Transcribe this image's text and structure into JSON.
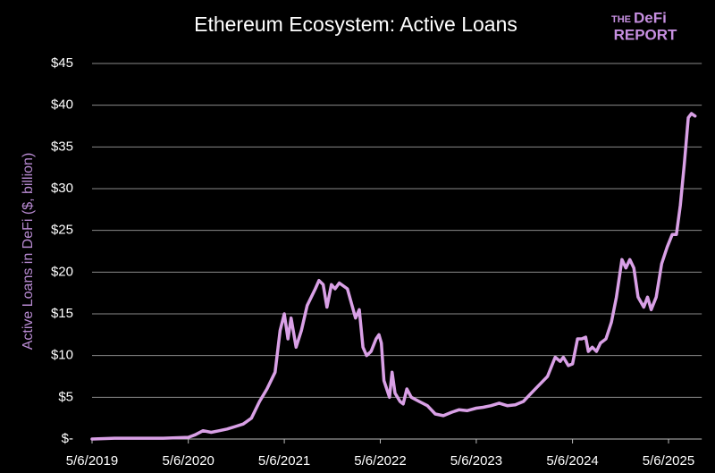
{
  "chart_data": {
    "type": "line",
    "title": "Ethereum Ecosystem: Active Loans",
    "logo": [
      "THE",
      "DeFi",
      "REPORT"
    ],
    "y_label": "Active Loans in DeFi ($, billion)",
    "color": "#d9a0e6",
    "grid": true,
    "xlim": [
      "2019-05-06",
      "2025-08-20"
    ],
    "xticks": [
      {
        "value": "2019-05-06",
        "label": "5/6/2019"
      },
      {
        "value": "2020-05-06",
        "label": "5/6/2020"
      },
      {
        "value": "2021-05-06",
        "label": "5/6/2021"
      },
      {
        "value": "2022-05-06",
        "label": "5/6/2022"
      },
      {
        "value": "2023-05-06",
        "label": "5/6/2023"
      },
      {
        "value": "2024-05-06",
        "label": "5/6/2024"
      },
      {
        "value": "2025-05-06",
        "label": "5/6/2025"
      }
    ],
    "ylim": [
      0,
      45
    ],
    "yticks": [
      {
        "value": 0,
        "label": "$-"
      },
      {
        "value": 5,
        "label": "$5"
      },
      {
        "value": 10,
        "label": "$10"
      },
      {
        "value": 15,
        "label": "$15"
      },
      {
        "value": 20,
        "label": "$20"
      },
      {
        "value": 25,
        "label": "$25"
      },
      {
        "value": 30,
        "label": "$30"
      },
      {
        "value": 35,
        "label": "$35"
      },
      {
        "value": 40,
        "label": "$40"
      },
      {
        "value": 45,
        "label": "$45"
      }
    ],
    "x": [
      "2019-05-06",
      "2019-08-01",
      "2019-11-01",
      "2020-02-01",
      "2020-05-06",
      "2020-06-01",
      "2020-07-01",
      "2020-08-01",
      "2020-09-01",
      "2020-10-01",
      "2020-11-01",
      "2020-12-01",
      "2021-01-01",
      "2021-02-01",
      "2021-03-01",
      "2021-04-01",
      "2021-04-20",
      "2021-05-06",
      "2021-05-20",
      "2021-06-01",
      "2021-06-20",
      "2021-07-10",
      "2021-08-01",
      "2021-09-01",
      "2021-09-15",
      "2021-10-01",
      "2021-10-15",
      "2021-11-01",
      "2021-11-15",
      "2021-12-01",
      "2022-01-01",
      "2022-02-01",
      "2022-02-15",
      "2022-03-01",
      "2022-03-15",
      "2022-04-01",
      "2022-04-20",
      "2022-05-01",
      "2022-05-10",
      "2022-05-20",
      "2022-06-10",
      "2022-06-20",
      "2022-07-01",
      "2022-07-20",
      "2022-08-01",
      "2022-08-15",
      "2022-09-01",
      "2022-10-01",
      "2022-11-01",
      "2022-12-01",
      "2023-01-01",
      "2023-02-01",
      "2023-03-01",
      "2023-04-01",
      "2023-05-06",
      "2023-06-01",
      "2023-07-01",
      "2023-08-01",
      "2023-09-01",
      "2023-10-01",
      "2023-11-01",
      "2023-12-01",
      "2024-01-01",
      "2024-02-01",
      "2024-03-01",
      "2024-03-20",
      "2024-04-01",
      "2024-04-20",
      "2024-05-06",
      "2024-05-25",
      "2024-06-10",
      "2024-06-25",
      "2024-07-05",
      "2024-07-20",
      "2024-08-05",
      "2024-08-20",
      "2024-09-10",
      "2024-10-01",
      "2024-10-20",
      "2024-11-10",
      "2024-11-25",
      "2024-12-10",
      "2024-12-25",
      "2025-01-10",
      "2025-02-01",
      "2025-02-15",
      "2025-03-01",
      "2025-03-20",
      "2025-04-10",
      "2025-05-01",
      "2025-05-20",
      "2025-06-05",
      "2025-06-20",
      "2025-07-05",
      "2025-07-20",
      "2025-08-01",
      "2025-08-15"
    ],
    "values": [
      0,
      0.1,
      0.1,
      0.1,
      0.2,
      0.5,
      1.0,
      0.8,
      1.0,
      1.2,
      1.5,
      1.8,
      2.5,
      4.5,
      6.0,
      8,
      13,
      15,
      12,
      14.5,
      11,
      13,
      16,
      18,
      19,
      18.5,
      15.8,
      18.5,
      18,
      18.7,
      18,
      14.5,
      15.5,
      11,
      10,
      10.5,
      12,
      12.5,
      11.5,
      7,
      5,
      8,
      5.5,
      4.5,
      4.2,
      6,
      5,
      4.5,
      4,
      3,
      2.8,
      3.2,
      3.5,
      3.4,
      3.7,
      3.8,
      4.0,
      4.3,
      4.0,
      4.1,
      4.5,
      5.5,
      6.5,
      7.5,
      9.8,
      9.3,
      9.8,
      8.8,
      9,
      12,
      12,
      12.2,
      10.5,
      11,
      10.5,
      11.5,
      12,
      14,
      17,
      21.5,
      20.5,
      21.5,
      20.5,
      17,
      15.8,
      17,
      15.5,
      17,
      21,
      23,
      24.5,
      24.5,
      28,
      33,
      38.5,
      39,
      38.7
    ]
  }
}
